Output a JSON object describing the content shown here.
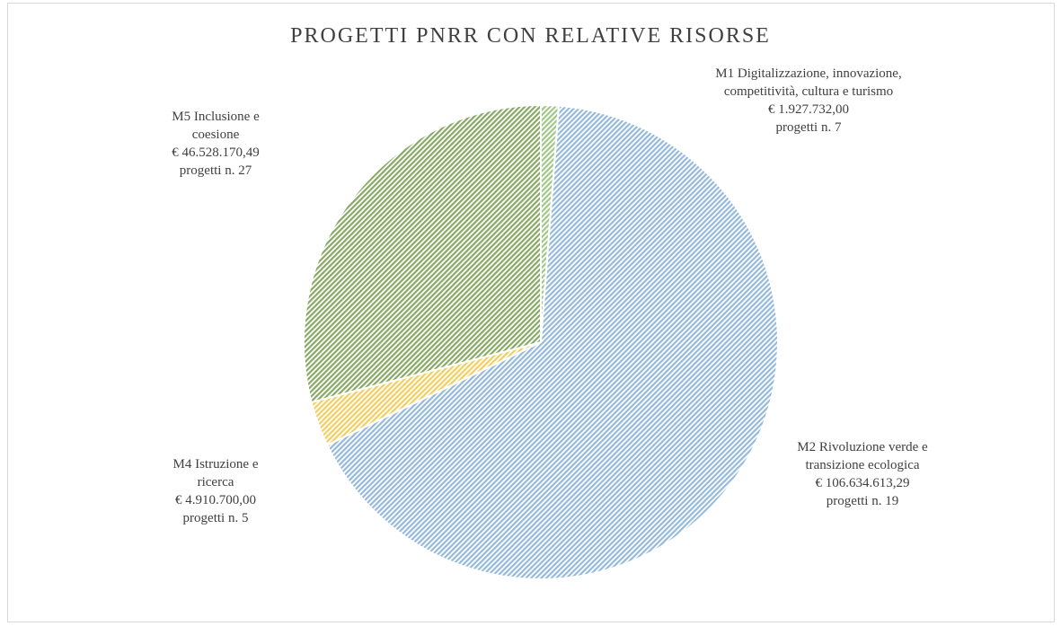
{
  "chart_data": {
    "type": "pie",
    "title": "PROGETTI PNRR CON RELATIVE RISORSE",
    "currency_prefix": "€ ",
    "projects_prefix": "progetti n. ",
    "slices": [
      {
        "id": "m1",
        "label_lines": [
          "M1 Digitalizzazione, innovazione,",
          "competitività, cultura e turismo"
        ],
        "amount_text": "1.927.732,00",
        "value": 1927732.0,
        "projects": 7,
        "color": "#a9d18e"
      },
      {
        "id": "m2",
        "label_lines": [
          "M2 Rivoluzione verde e",
          "transizione ecologica"
        ],
        "amount_text": "106.634.613,29",
        "value": 106634613.29,
        "projects": 19,
        "color": "#9dc3e6"
      },
      {
        "id": "m4",
        "label_lines": [
          "M4 Istruzione e",
          "ricerca"
        ],
        "amount_text": "4.910.700,00",
        "value": 4910700.0,
        "projects": 5,
        "color": "#ffd966"
      },
      {
        "id": "m5",
        "label_lines": [
          "M5 Inclusione e",
          "coesione"
        ],
        "amount_text": "46.528.170,49",
        "value": 46528170.49,
        "projects": 27,
        "color": "#8fb26a"
      }
    ]
  }
}
